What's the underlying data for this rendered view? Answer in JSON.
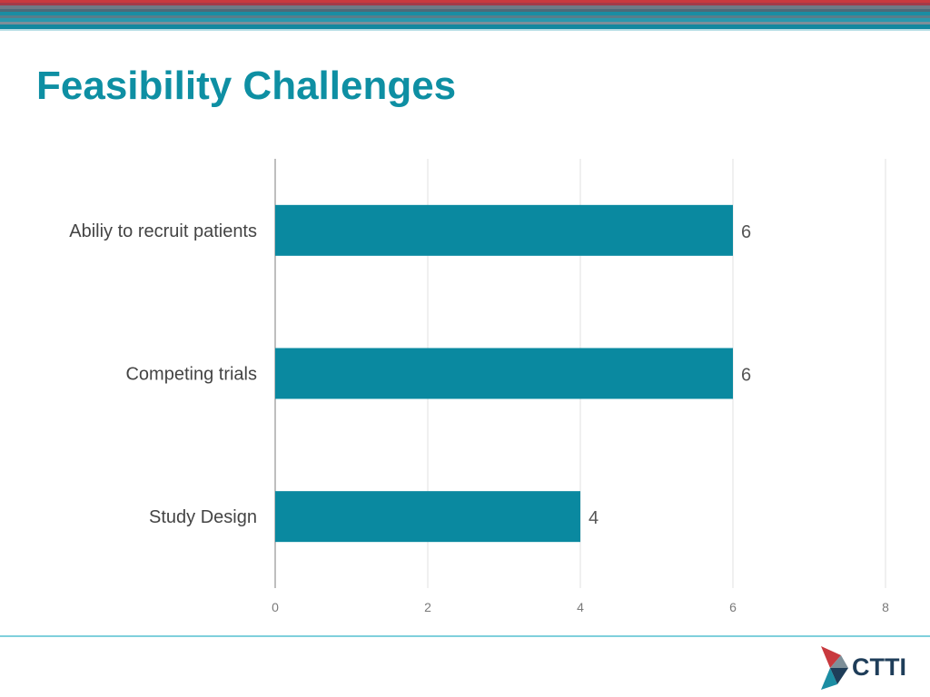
{
  "slide": {
    "title": "Feasibility Challenges",
    "logo_text": "CTTI"
  },
  "colors": {
    "accent": "#0e8fa3",
    "bar": "#0a89a0",
    "stripe_red": "#c8393e",
    "stripe_teal": "#1b8da3",
    "stripe_gray": "#6e7a86",
    "rule": "#7fd0dc"
  },
  "chart_data": {
    "type": "bar",
    "orientation": "horizontal",
    "categories": [
      "Abiliy to recruit patients",
      "Competing trials",
      "Study Design"
    ],
    "values": [
      6,
      6,
      4
    ],
    "data_labels": [
      "6",
      "6",
      "4"
    ],
    "xlim": [
      0,
      8
    ],
    "xticks": [
      0,
      2,
      4,
      6,
      8
    ],
    "grid": true,
    "legend": "none"
  }
}
